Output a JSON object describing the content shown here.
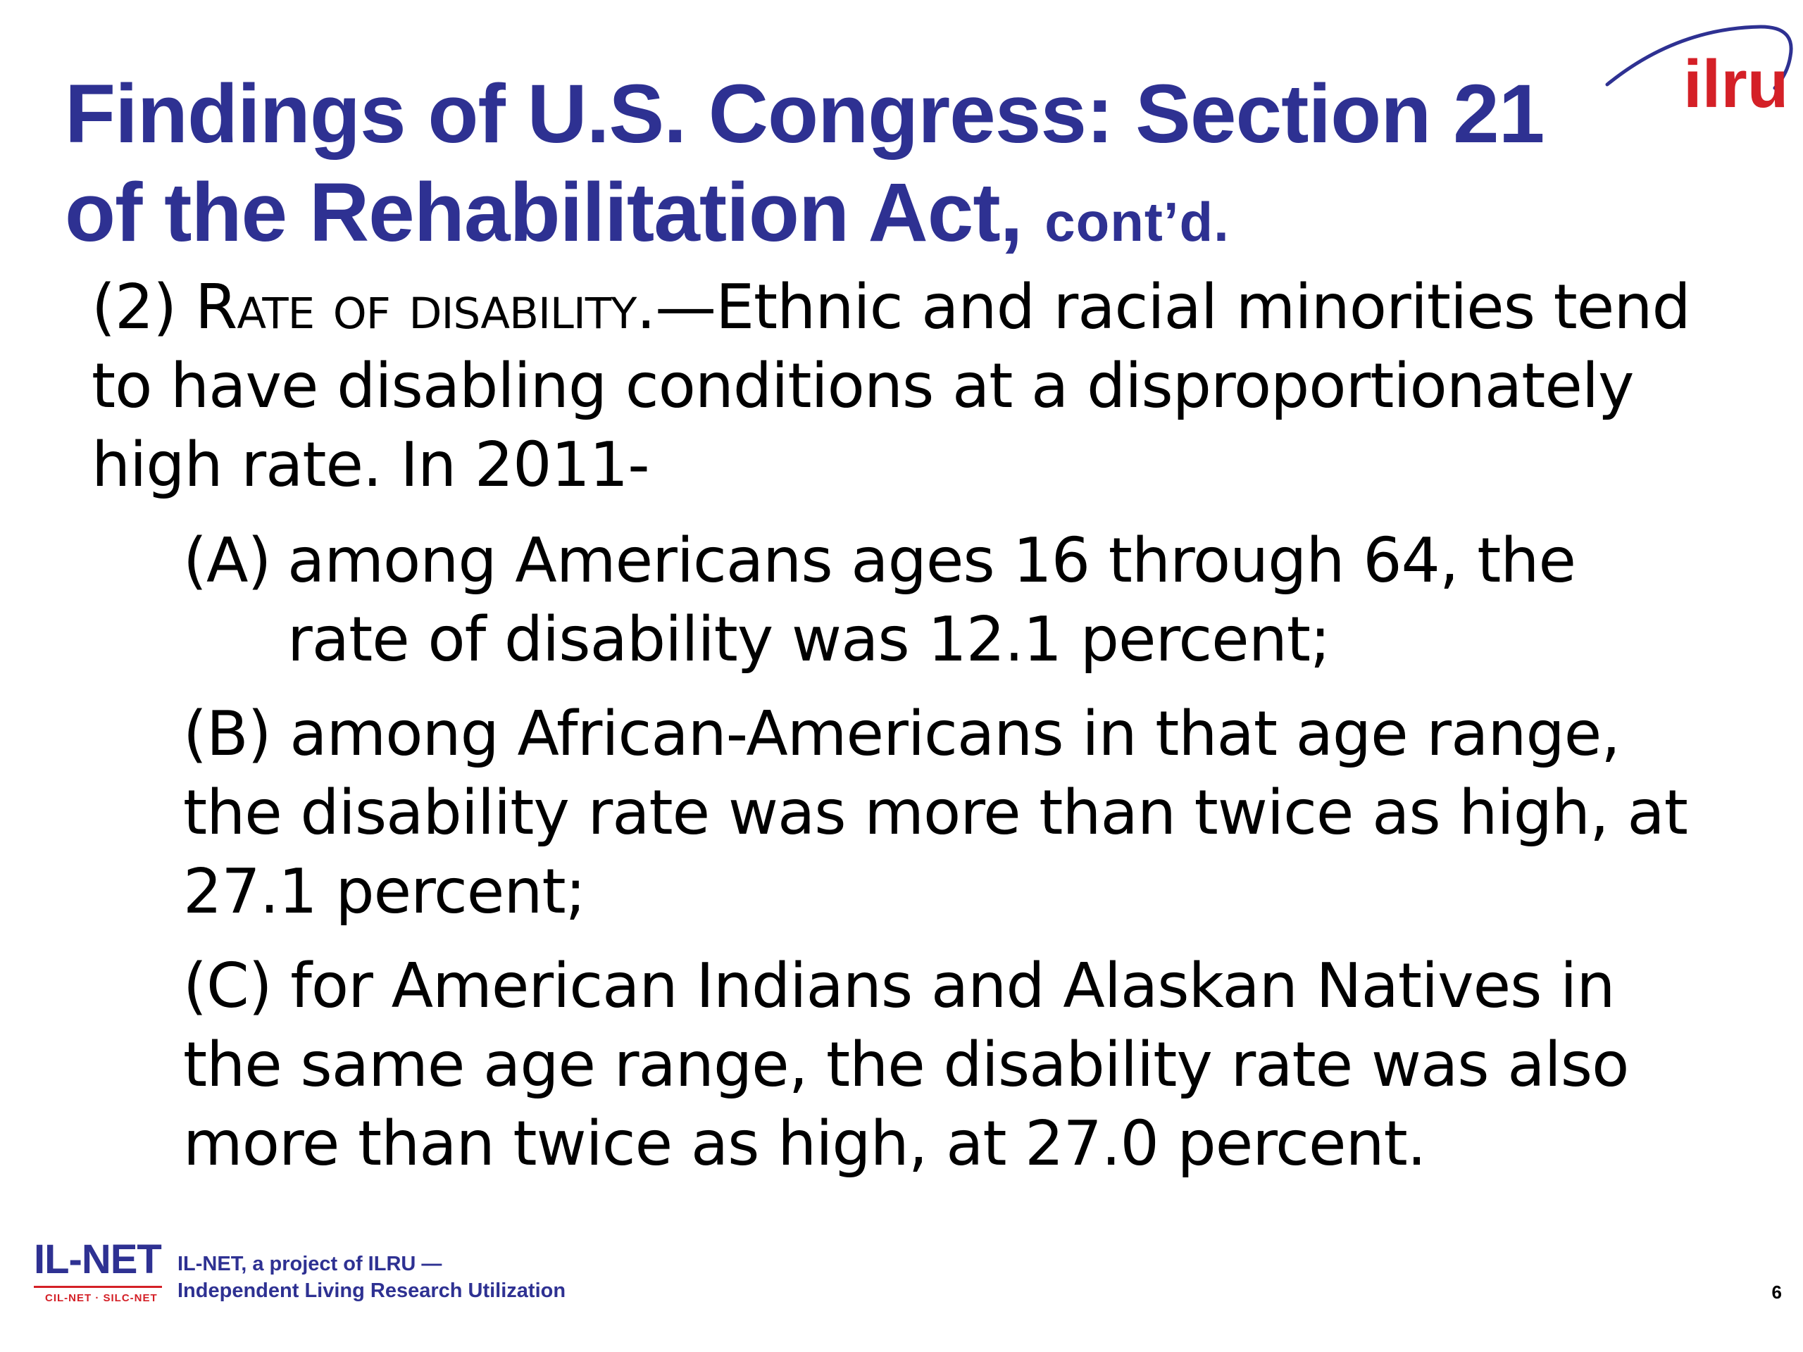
{
  "title": {
    "line1": "Findings of U.S. Congress: Section 21",
    "line2": "of the Rehabilitation Act,",
    "contd": "cont’d."
  },
  "logo": {
    "text": "ilru",
    "icon": "ilru-logo-icon",
    "color_text": "#d42027",
    "color_arc": "#2e3192"
  },
  "body": {
    "para_number": "(2) ",
    "para_heading": "Rate of disability",
    "para_text": ".—Ethnic and racial minorities tend to have disabling conditions at a disproportionately high rate. In 2011-",
    "items": [
      {
        "label": "(A)",
        "text": "among Americans ages 16 through 64, the rate of disability was 12.1 percent;"
      },
      {
        "label": "(B)",
        "text": "among African-Americans in that age range, the disability rate was more than twice as high, at 27.1 percent;"
      },
      {
        "label": "(C)",
        "text": "for American Indians and Alaskan Natives in the same age range, the disability rate was also more than twice as high, at 27.0 percent."
      }
    ]
  },
  "footer": {
    "logo_main": "IL-NET",
    "logo_sub": "CIL-NET · SILC-NET",
    "tagline_line1": "IL-NET, a project of ILRU —",
    "tagline_line2": "Independent Living Research Utilization",
    "page_number": "6"
  },
  "colors": {
    "title": "#2e3192",
    "accent_red": "#d42027",
    "body_text": "#000000",
    "background": "#ffffff"
  }
}
